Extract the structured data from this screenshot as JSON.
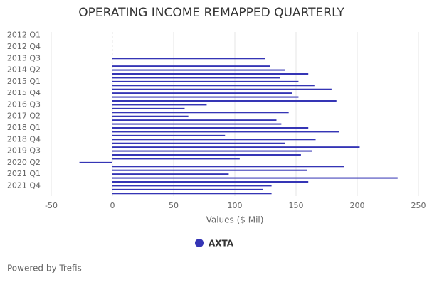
{
  "chart_data": {
    "type": "hbar",
    "title": "OPERATING INCOME REMAPPED QUARTERLY",
    "x_label": "Values ($ Mil)",
    "categories": [
      "2012 Q1",
      null,
      null,
      "2012 Q4",
      null,
      null,
      "2013 Q3",
      null,
      null,
      "2014 Q2",
      null,
      null,
      "2015 Q1",
      null,
      null,
      "2015 Q4",
      null,
      null,
      "2016 Q3",
      null,
      null,
      "2017 Q2",
      null,
      null,
      "2018 Q1",
      null,
      null,
      "2018 Q4",
      null,
      null,
      "2019 Q3",
      null,
      null,
      "2020 Q2",
      null,
      null,
      "2021 Q1",
      null,
      null,
      "2021 Q4",
      null,
      null
    ],
    "series": [
      {
        "name": "AXTA",
        "color": "#3535b5",
        "values": [
          null,
          null,
          null,
          null,
          null,
          null,
          125,
          null,
          129,
          141,
          160,
          137,
          152,
          165,
          179,
          147,
          152,
          183,
          77,
          59,
          144,
          62,
          134,
          138,
          160,
          185,
          92,
          166,
          141,
          202,
          163,
          154,
          104,
          -27,
          189,
          159,
          95,
          233,
          160,
          130,
          123,
          130
        ]
      }
    ],
    "xlim": [
      -50,
      250
    ],
    "xticks": [
      -50,
      0,
      50,
      100,
      150,
      200,
      250
    ],
    "grid": true,
    "footer": "Powered by Trefis"
  }
}
